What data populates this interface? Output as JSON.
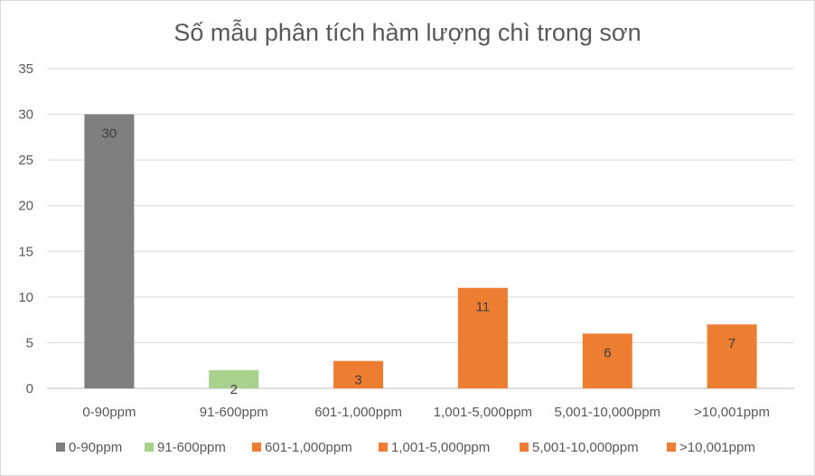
{
  "chart_data": {
    "type": "bar",
    "title": "Số mẫu phân tích hàm lượng chì trong sơn",
    "xlabel": "",
    "ylabel": "",
    "categories": [
      "0-90ppm",
      "91-600ppm",
      "601-1,000ppm",
      "1,001-5,000ppm",
      "5,001-10,000ppm",
      ">10,001ppm"
    ],
    "values": [
      30,
      2,
      3,
      11,
      6,
      7
    ],
    "colors": [
      "#7f7f7f",
      "#a9d18e",
      "#ed7d31",
      "#ed7d31",
      "#ed7d31",
      "#ed7d31"
    ],
    "ylim": [
      0,
      35
    ],
    "yticks": [
      "0",
      "5",
      "10",
      "15",
      "20",
      "25",
      "30",
      "35"
    ],
    "grid": true,
    "legend_position": "bottom",
    "data_labels": [
      "30",
      "2",
      "3",
      "11",
      "6",
      "7"
    ]
  }
}
